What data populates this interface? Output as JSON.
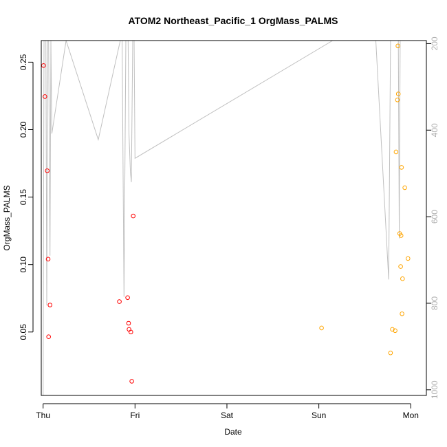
{
  "chart_data": {
    "type": "scatter",
    "title": "ATOM2 Northeast_Pacific_1 OrgMass_PALMS",
    "xlabel": "Date",
    "ylabel": "OrgMass_PALMS",
    "x_ticks": [
      "Thu",
      "Fri",
      "Sat",
      "Sun",
      "Mon"
    ],
    "xlim": [
      -0.02,
      4.17
    ],
    "ylim": [
      0.003,
      0.266
    ],
    "y_ticks": [
      0.05,
      0.1,
      0.15,
      0.2,
      0.25
    ],
    "y_tick_labels": [
      "0.05",
      "0.10",
      "0.15",
      "0.20",
      "0.25"
    ],
    "y2_lim": [
      1013,
      193
    ],
    "y2_ticks": [
      200,
      400,
      600,
      800,
      1000
    ],
    "y2_tick_labels": [
      "200",
      "400",
      "600",
      "800",
      "1000"
    ],
    "grid": false,
    "series": [
      {
        "color": "#ff0000",
        "marker": "open-circle",
        "x": [
          0.005,
          0.02,
          0.045,
          0.055,
          0.06,
          0.075,
          0.83,
          0.92,
          0.93,
          0.935,
          0.955,
          0.965,
          0.98
        ],
        "y": [
          0.2475,
          0.2245,
          0.1695,
          0.104,
          0.0465,
          0.07,
          0.0725,
          0.0755,
          0.0565,
          0.052,
          0.05,
          0.0135,
          0.136
        ]
      },
      {
        "color": "#ffa500",
        "marker": "open-circle",
        "x": [
          3.03,
          3.78,
          3.8,
          3.83,
          3.84,
          3.855,
          3.86,
          3.865,
          3.88,
          3.89,
          3.895,
          3.9,
          3.905,
          3.91,
          3.935,
          3.97
        ],
        "y": [
          0.053,
          0.0345,
          0.052,
          0.051,
          0.1835,
          0.222,
          0.262,
          0.2265,
          0.123,
          0.0985,
          0.1215,
          0.172,
          0.0635,
          0.0895,
          0.157,
          0.1045
        ]
      },
      {
        "color": "#c0c0c0",
        "type": "line",
        "axis": "right",
        "x": [
          0.0,
          0.01,
          0.02,
          0.03,
          0.04,
          0.05,
          0.06,
          0.075,
          0.085,
          0.095,
          0.25,
          0.6,
          0.84,
          0.86,
          0.88,
          0.9,
          0.91,
          0.925,
          0.935,
          0.95,
          0.96,
          0.975,
          0.99,
          1.0,
          3.15,
          3.62,
          3.76,
          3.78,
          3.8,
          3.82,
          3.835,
          3.85,
          3.865,
          3.875,
          3.885,
          3.9,
          3.915,
          3.925,
          3.94,
          3.955,
          4.0
        ],
        "y": [
          1013,
          186,
          186,
          186,
          805,
          186,
          186,
          690,
          186,
          408,
          186,
          422,
          186,
          186,
          785,
          186,
          186,
          186,
          410,
          496,
          520,
          186,
          186,
          465,
          186,
          186,
          745,
          186,
          186,
          186,
          186,
          186,
          186,
          650,
          186,
          186,
          186,
          186,
          186,
          186,
          186
        ]
      }
    ]
  }
}
